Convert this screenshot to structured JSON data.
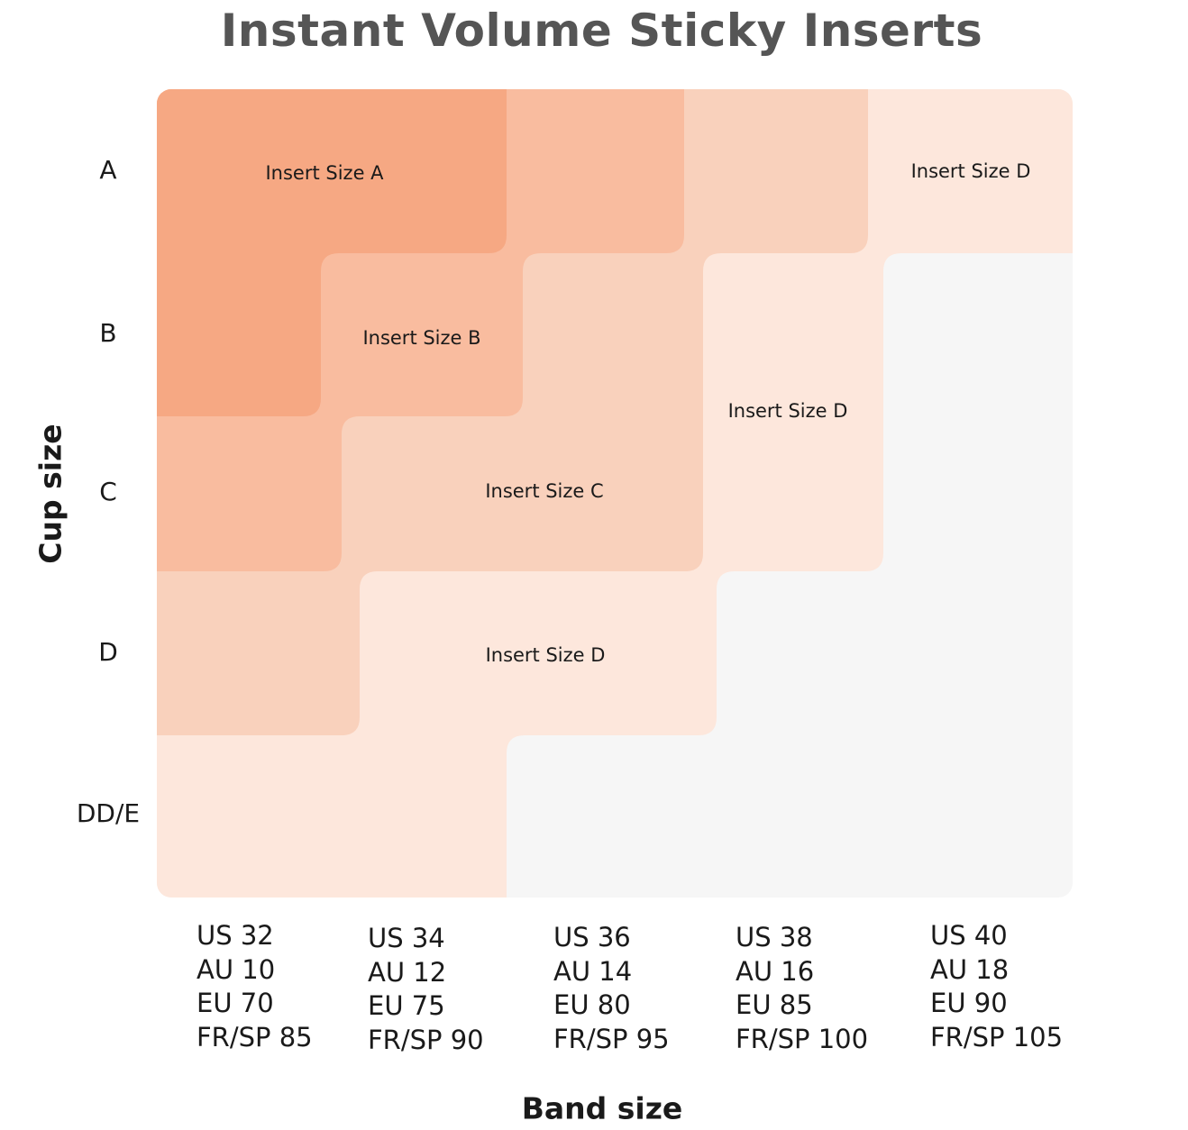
{
  "title": "Instant Volume Sticky Inserts",
  "chart_data": {
    "type": "heatmap",
    "title": "Instant Volume Sticky Inserts",
    "xlabel": "Band size",
    "ylabel": "Cup size",
    "cup_sizes": [
      "A",
      "B",
      "C",
      "D",
      "DD/E"
    ],
    "band_sizes": [
      {
        "US": "US 32",
        "AU": "AU 10",
        "EU": "EU 70",
        "FRSP": "FR/SP 85"
      },
      {
        "US": "US 34",
        "AU": "AU 12",
        "EU": "EU 75",
        "FRSP": "FR/SP 90"
      },
      {
        "US": "US 36",
        "AU": "AU 14",
        "EU": "EU 80",
        "FRSP": "FR/SP 95"
      },
      {
        "US": "US 38",
        "AU": "AU 16",
        "EU": "EU 85",
        "FRSP": "FR/SP 100"
      },
      {
        "US": "US 40",
        "AU": "AU 18",
        "EU": "EU 90",
        "FRSP": "FR/SP 105"
      }
    ],
    "zone_labels": {
      "a": "Insert Size A",
      "b": "Insert Size B",
      "c": "Insert Size C",
      "d_top": "Insert Size D",
      "d_mid": "Insert Size D",
      "d_bottom": "Insert Size D"
    },
    "colors": {
      "A": "#f6a883",
      "B": "#f9bc9f",
      "C": "#f9d1bc",
      "D": "#fde7dc",
      "none": "#f6f6f6"
    }
  }
}
